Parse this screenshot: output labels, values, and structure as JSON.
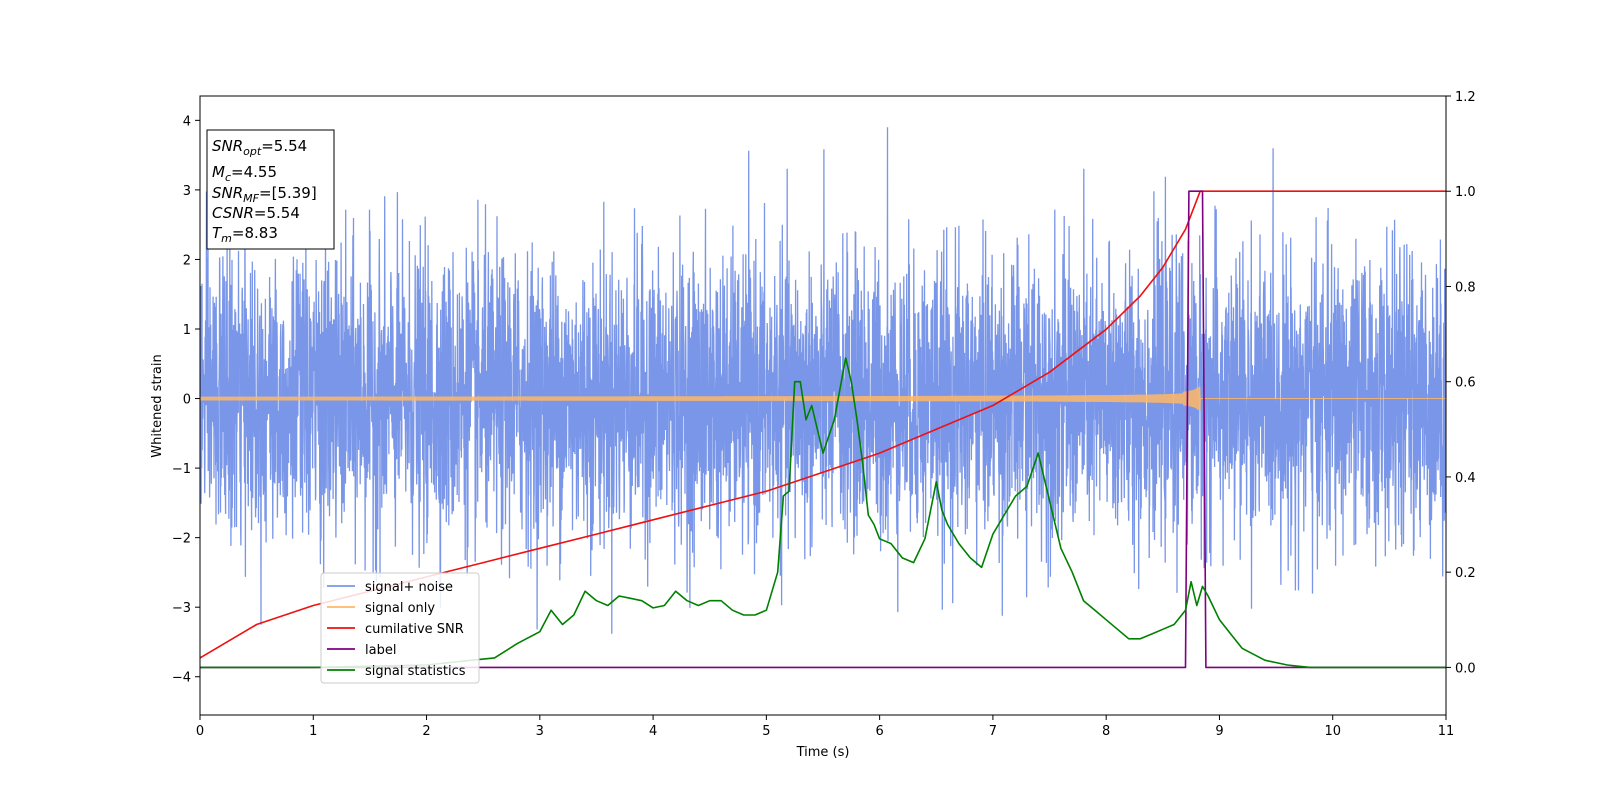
{
  "chart_data": {
    "type": "line",
    "xlabel": "Time (s)",
    "ylabel_left": "Whitened strain",
    "ylabel_right": "",
    "xlim": [
      0,
      11
    ],
    "ylim_left": [
      -4.55,
      4.35
    ],
    "ylim_right": [
      -0.1,
      1.2
    ],
    "x_ticks": [
      0,
      1,
      2,
      3,
      4,
      5,
      6,
      7,
      8,
      9,
      10,
      11
    ],
    "y_ticks_left": [
      -4,
      -3,
      -2,
      -1,
      0,
      1,
      2,
      3,
      4
    ],
    "y_ticks_right": [
      0.0,
      0.2,
      0.4,
      0.6,
      0.8,
      1.0,
      1.2
    ],
    "grid": false,
    "legend_placement": "lower-left",
    "annotation": {
      "snr_opt": {
        "symbol": "SNR",
        "sub": "opt",
        "value": "=5.54"
      },
      "mc": {
        "symbol": "M",
        "sub": "c",
        "value": "=4.55"
      },
      "snr_mf": {
        "symbol": "SNR",
        "sub": "MF",
        "value": "=[5.39]"
      },
      "csnr": {
        "symbol": "CSNR",
        "value": "=5.54"
      },
      "tm": {
        "symbol": "T",
        "sub": "m",
        "value": "=8.83"
      }
    },
    "series": [
      {
        "name": "signal+ noise",
        "color": "#7a96e8",
        "axis": "left",
        "kind": "noise",
        "amplitude_sd": 1.0,
        "peak_value": 3.9,
        "peak_time": 6.07
      },
      {
        "name": "signal only",
        "color": "#ffb866",
        "axis": "left",
        "kind": "chirp",
        "merger_time": 8.83
      },
      {
        "name": "cumilative SNR",
        "color": "#ee1111",
        "axis": "right",
        "x": [
          0,
          0.5,
          1,
          1.5,
          2,
          2.5,
          3,
          3.5,
          4,
          4.5,
          5,
          5.5,
          6,
          6.5,
          7,
          7.5,
          8,
          8.3,
          8.5,
          8.7,
          8.83,
          11
        ],
        "y": [
          0.02,
          0.09,
          0.13,
          0.16,
          0.19,
          0.22,
          0.25,
          0.28,
          0.31,
          0.34,
          0.37,
          0.41,
          0.45,
          0.5,
          0.55,
          0.62,
          0.71,
          0.78,
          0.84,
          0.92,
          1.0,
          1.0
        ]
      },
      {
        "name": "label",
        "color": "#800080",
        "axis": "right",
        "x": [
          0,
          8.7,
          8.73,
          8.85,
          8.88,
          11
        ],
        "y": [
          0.0,
          0.0,
          1.0,
          1.0,
          0.0,
          0.0
        ]
      },
      {
        "name": "signal statistics",
        "color": "#008000",
        "axis": "right",
        "x": [
          0,
          1,
          2,
          2.4,
          2.6,
          2.8,
          3.0,
          3.1,
          3.2,
          3.3,
          3.4,
          3.5,
          3.6,
          3.7,
          3.8,
          3.9,
          4.0,
          4.1,
          4.2,
          4.3,
          4.4,
          4.5,
          4.6,
          4.7,
          4.8,
          4.9,
          5.0,
          5.1,
          5.15,
          5.2,
          5.25,
          5.3,
          5.35,
          5.4,
          5.5,
          5.6,
          5.7,
          5.75,
          5.8,
          5.85,
          5.9,
          5.95,
          6.0,
          6.1,
          6.2,
          6.3,
          6.4,
          6.5,
          6.55,
          6.6,
          6.7,
          6.8,
          6.9,
          7.0,
          7.1,
          7.2,
          7.3,
          7.4,
          7.5,
          7.6,
          7.7,
          7.8,
          7.9,
          8.0,
          8.1,
          8.2,
          8.3,
          8.4,
          8.5,
          8.6,
          8.7,
          8.75,
          8.8,
          8.85,
          8.9,
          9.0,
          9.1,
          9.2,
          9.4,
          9.6,
          9.8,
          10.0,
          11.0
        ],
        "y": [
          0.0,
          0.0,
          0.005,
          0.015,
          0.02,
          0.05,
          0.075,
          0.12,
          0.09,
          0.11,
          0.16,
          0.14,
          0.13,
          0.15,
          0.145,
          0.14,
          0.125,
          0.13,
          0.16,
          0.14,
          0.13,
          0.14,
          0.14,
          0.12,
          0.11,
          0.11,
          0.12,
          0.2,
          0.36,
          0.37,
          0.6,
          0.6,
          0.52,
          0.55,
          0.45,
          0.52,
          0.65,
          0.6,
          0.52,
          0.43,
          0.32,
          0.3,
          0.27,
          0.26,
          0.23,
          0.22,
          0.27,
          0.39,
          0.33,
          0.3,
          0.26,
          0.23,
          0.21,
          0.28,
          0.32,
          0.36,
          0.38,
          0.45,
          0.35,
          0.25,
          0.2,
          0.14,
          0.12,
          0.1,
          0.08,
          0.06,
          0.06,
          0.07,
          0.08,
          0.09,
          0.12,
          0.18,
          0.13,
          0.17,
          0.15,
          0.1,
          0.07,
          0.04,
          0.015,
          0.005,
          0.0,
          0.0,
          0.0
        ]
      }
    ]
  }
}
